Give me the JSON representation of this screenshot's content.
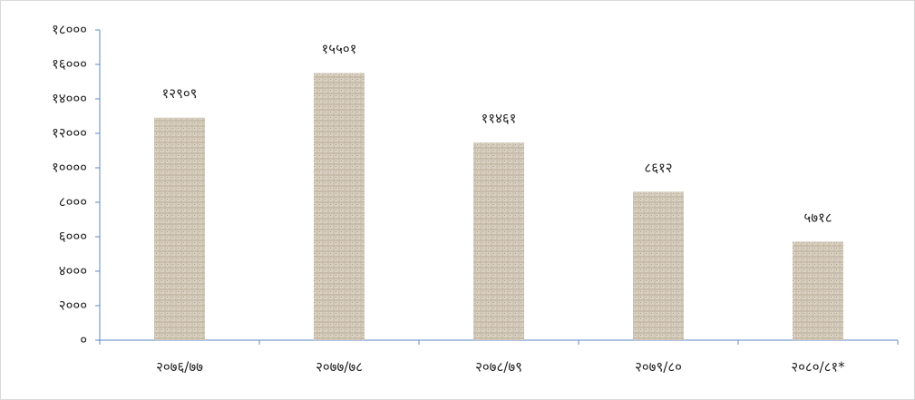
{
  "chart_data": {
    "type": "bar",
    "categories": [
      "२०७६/७७",
      "२०७७/७८",
      "२०७८/७९",
      "२०७९/८०",
      "२०८०/८१*"
    ],
    "values": [
      12909,
      15501,
      11461,
      8612,
      5718
    ],
    "value_labels": [
      "१२९०९",
      "१५५०१",
      "११४६१",
      "८६१२",
      "५७१८"
    ],
    "color": "#d6cbb8",
    "ylim": [
      0,
      18000
    ],
    "yticks": [
      {
        "value": 0,
        "label": "०"
      },
      {
        "value": 2000,
        "label": "२०००"
      },
      {
        "value": 4000,
        "label": "४०००"
      },
      {
        "value": 6000,
        "label": "६०००"
      },
      {
        "value": 8000,
        "label": "८०००"
      },
      {
        "value": 10000,
        "label": "१००००"
      },
      {
        "value": 12000,
        "label": "१२०००"
      },
      {
        "value": 14000,
        "label": "१४०००"
      },
      {
        "value": 16000,
        "label": "१६०००"
      },
      {
        "value": 18000,
        "label": "१८०००"
      }
    ],
    "grid": false
  }
}
